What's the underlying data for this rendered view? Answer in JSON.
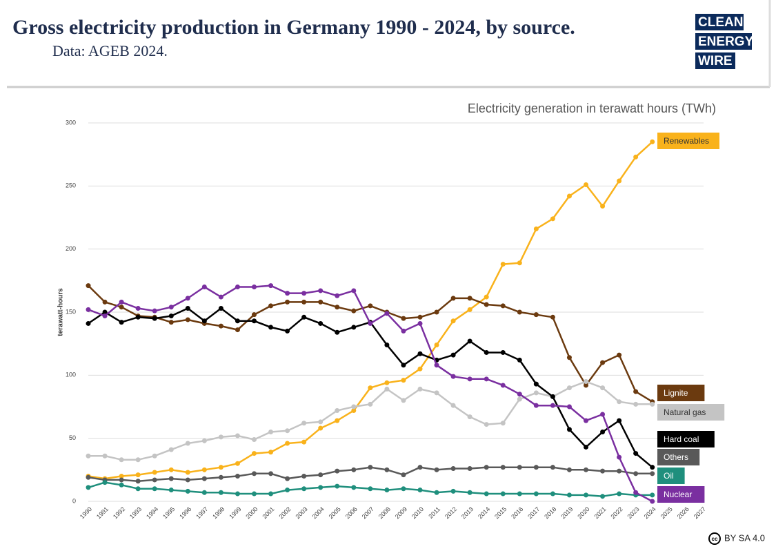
{
  "header": {
    "title": "Gross electricity production in Germany 1990 - 2024, by source.",
    "subtitle": "Data: AGEB 2024.",
    "logo": [
      "CLEAN",
      "ENERGY",
      "WIRE"
    ]
  },
  "footer": {
    "license": "BY SA 4.0"
  },
  "chart_data": {
    "type": "line",
    "title": "Electricity generation in terawatt hours (TWh)",
    "y_label": "terawatt-hours",
    "categories": [
      "1990",
      "1991",
      "1992",
      "1993",
      "1994",
      "1995",
      "1996",
      "1997",
      "1998",
      "1999",
      "2000",
      "2001",
      "2002",
      "2003",
      "2004",
      "2005",
      "2006",
      "2007",
      "2008",
      "2009",
      "2010",
      "2011",
      "2012",
      "2013",
      "2014",
      "2015",
      "2016",
      "2017",
      "2018",
      "2019",
      "2020",
      "2021",
      "2022",
      "2023",
      "2024",
      "2025",
      "2026",
      "2027"
    ],
    "ylim": [
      0,
      300
    ],
    "yticks": [
      0,
      50,
      100,
      150,
      200,
      250,
      300
    ],
    "grid": true,
    "series": [
      {
        "name": "Renewables",
        "color": "#f9b21b",
        "values": [
          20,
          18,
          20,
          21,
          23,
          25,
          23,
          25,
          27,
          30,
          38,
          39,
          46,
          47,
          58,
          64,
          72,
          90,
          94,
          96,
          105,
          124,
          143,
          152,
          162,
          188,
          189,
          216,
          224,
          242,
          251,
          234,
          254,
          273,
          285,
          null,
          null,
          null
        ]
      },
      {
        "name": "Lignite",
        "color": "#6b3a0f",
        "values": [
          171,
          158,
          154,
          147,
          146,
          142,
          144,
          141,
          139,
          136,
          148,
          155,
          158,
          158,
          158,
          154,
          151,
          155,
          150,
          145,
          146,
          150,
          161,
          161,
          156,
          155,
          150,
          148,
          146,
          114,
          92,
          110,
          116,
          87,
          79,
          null,
          null,
          null
        ]
      },
      {
        "name": "Natural gas",
        "color": "#c4c4c4",
        "values": [
          36,
          36,
          33,
          33,
          36,
          41,
          46,
          48,
          51,
          52,
          49,
          55,
          56,
          62,
          63,
          72,
          75,
          77,
          89,
          80,
          89,
          86,
          76,
          67,
          61,
          62,
          81,
          86,
          83,
          90,
          95,
          90,
          79,
          77,
          77,
          null,
          null,
          null
        ]
      },
      {
        "name": "Hard coal",
        "color": "#000000",
        "values": [
          141,
          150,
          142,
          146,
          145,
          147,
          153,
          143,
          153,
          143,
          143,
          138,
          135,
          146,
          141,
          134,
          138,
          142,
          124,
          108,
          117,
          112,
          116,
          127,
          118,
          118,
          112,
          93,
          83,
          57,
          43,
          55,
          64,
          38,
          27,
          null,
          null,
          null
        ]
      },
      {
        "name": "Others",
        "color": "#595959",
        "values": [
          19,
          17,
          17,
          16,
          17,
          18,
          17,
          18,
          19,
          20,
          22,
          22,
          18,
          20,
          21,
          24,
          25,
          27,
          25,
          21,
          27,
          25,
          26,
          26,
          27,
          27,
          27,
          27,
          27,
          25,
          25,
          24,
          24,
          22,
          22,
          null,
          null,
          null
        ]
      },
      {
        "name": "Oil",
        "color": "#1f8f7d",
        "values": [
          11,
          15,
          13,
          10,
          10,
          9,
          8,
          7,
          7,
          6,
          6,
          6,
          9,
          10,
          11,
          12,
          11,
          10,
          9,
          10,
          9,
          7,
          8,
          7,
          6,
          6,
          6,
          6,
          6,
          5,
          5,
          4,
          6,
          5,
          5,
          null,
          null,
          null
        ]
      },
      {
        "name": "Nuclear",
        "color": "#7a2fa0",
        "values": [
          152,
          147,
          158,
          153,
          151,
          154,
          161,
          170,
          162,
          170,
          170,
          171,
          165,
          165,
          167,
          163,
          167,
          141,
          149,
          135,
          141,
          108,
          99,
          97,
          97,
          92,
          85,
          76,
          76,
          75,
          64,
          69,
          35,
          7,
          0,
          null,
          null,
          null
        ]
      }
    ]
  }
}
